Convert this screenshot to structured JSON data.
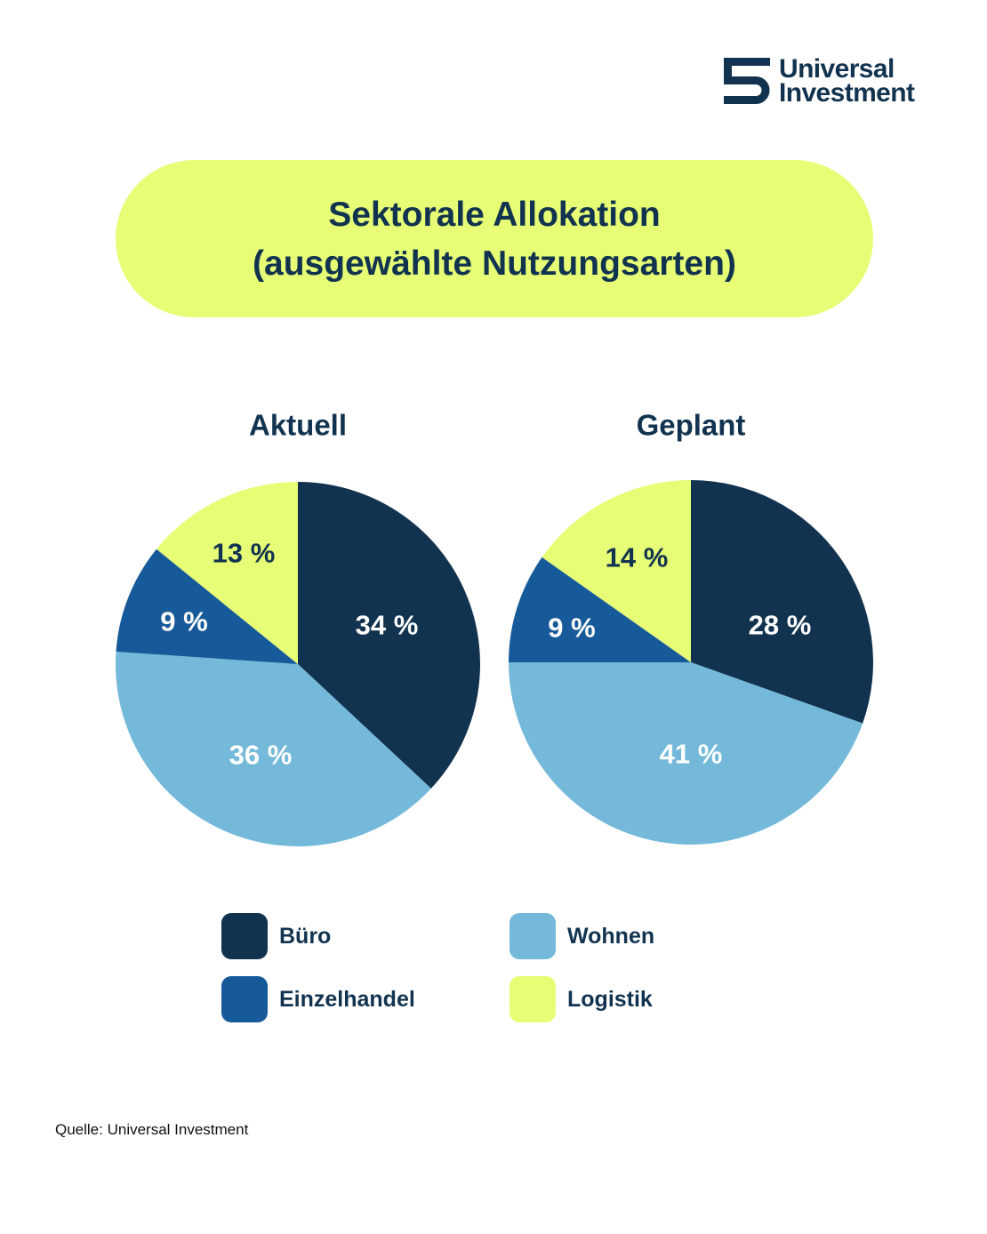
{
  "logo": {
    "icon": "universal-investment-logo-icon",
    "line1": "Universal",
    "line2": "Investment"
  },
  "title": {
    "line1": "Sektorale Allokation",
    "line2": "(ausgewählte Nutzungsarten)"
  },
  "colors": {
    "navy": "#12334f",
    "blue": "#175a99",
    "light_blue": "#74b9da",
    "lime": "#e6fd75",
    "background": "#ffffff"
  },
  "chart_data": [
    {
      "type": "pie",
      "title": "Aktuell",
      "categories": [
        "Büro",
        "Wohnen",
        "Einzelhandel",
        "Logistik"
      ],
      "values": [
        34,
        36,
        9,
        13
      ],
      "labels": [
        "34 %",
        "36 %",
        "9 %",
        "13 %"
      ],
      "colors": [
        "#12334f",
        "#74b9da",
        "#175a99",
        "#e6fd75"
      ]
    },
    {
      "type": "pie",
      "title": "Geplant",
      "categories": [
        "Büro",
        "Wohnen",
        "Einzelhandel",
        "Logistik"
      ],
      "values": [
        28,
        41,
        9,
        14
      ],
      "labels": [
        "28 %",
        "41 %",
        "9 %",
        "14 %"
      ],
      "colors": [
        "#12334f",
        "#74b9da",
        "#175a99",
        "#e6fd75"
      ]
    }
  ],
  "legend": {
    "items": [
      {
        "label": "Büro",
        "color": "#12334f"
      },
      {
        "label": "Einzelhandel",
        "color": "#175a99"
      },
      {
        "label": "Wohnen",
        "color": "#74b9da"
      },
      {
        "label": "Logistik",
        "color": "#e6fd75"
      }
    ]
  },
  "source": "Quelle: Universal Investment"
}
